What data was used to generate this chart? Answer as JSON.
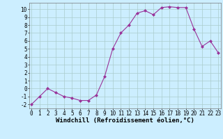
{
  "x": [
    0,
    1,
    2,
    3,
    4,
    5,
    6,
    7,
    8,
    9,
    10,
    11,
    12,
    13,
    14,
    15,
    16,
    17,
    18,
    19,
    20,
    21,
    22,
    23
  ],
  "y": [
    -2,
    -1,
    0,
    -0.5,
    -1,
    -1.2,
    -1.5,
    -1.5,
    -0.8,
    1.5,
    5,
    7,
    8,
    9.5,
    9.8,
    9.3,
    10.2,
    10.3,
    10.2,
    10.2,
    7.5,
    5.3,
    6.0,
    4.5
  ],
  "line_color": "#993399",
  "marker": "D",
  "markersize": 2,
  "linewidth": 0.8,
  "xlabel": "Windchill (Refroidissement éolien,°C)",
  "ylabel_ticks": [
    -2,
    -1,
    0,
    1,
    2,
    3,
    4,
    5,
    6,
    7,
    8,
    9,
    10
  ],
  "xtick_labels": [
    "0",
    "1",
    "2",
    "3",
    "4",
    "5",
    "6",
    "7",
    "8",
    "9",
    "10",
    "11",
    "12",
    "13",
    "14",
    "15",
    "16",
    "17",
    "18",
    "19",
    "20",
    "21",
    "22",
    "23"
  ],
  "ylim": [
    -2.5,
    10.8
  ],
  "xlim": [
    -0.3,
    23.3
  ],
  "background_color": "#cceeff",
  "grid_color": "#aacccc",
  "tick_fontsize": 5.5,
  "xlabel_fontsize": 6.5,
  "xlabel_fontweight": "bold"
}
